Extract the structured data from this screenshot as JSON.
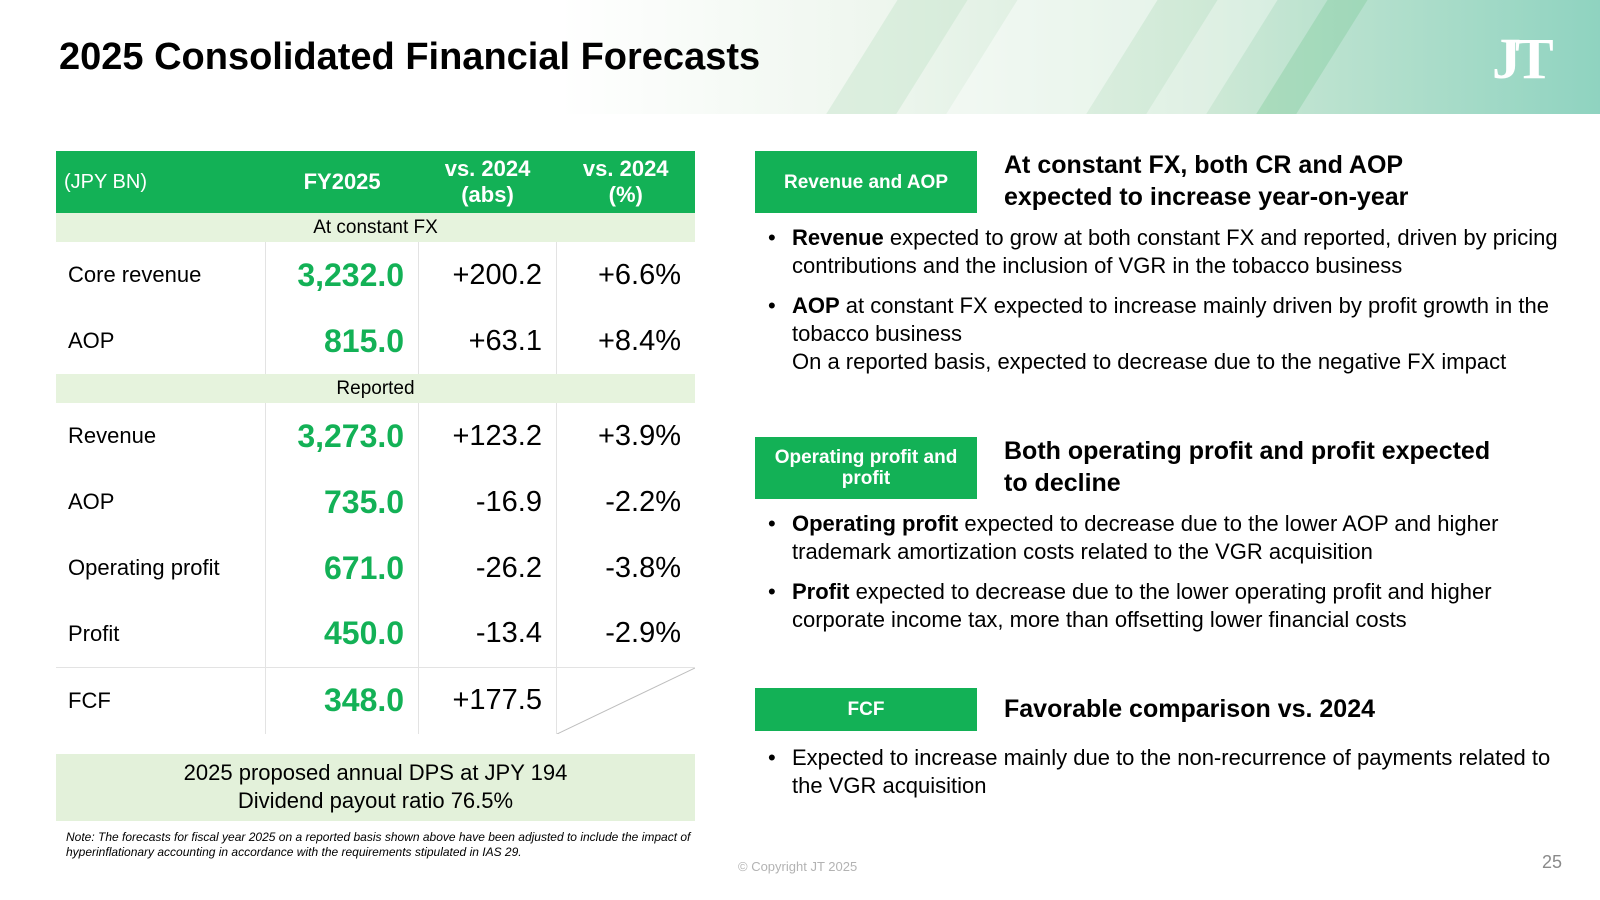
{
  "title": "2025 Consolidated Financial Forecasts",
  "logo_text": "JT",
  "table": {
    "headers": [
      "(JPY BN)",
      "FY2025",
      "vs. 2024\n(abs)",
      "vs. 2024\n(%)"
    ],
    "header_lines": {
      "unit": "(JPY BN)",
      "fy": "FY2025",
      "abs_1": "vs. 2024",
      "abs_2": "(abs)",
      "pct_1": "vs. 2024",
      "pct_2": "(%)"
    },
    "section_constant_fx": "At constant FX",
    "section_reported": "Reported",
    "rows": [
      {
        "label": "Core revenue",
        "fy2025": "3,232.0",
        "abs": "+200.2",
        "pct": "+6.6%"
      },
      {
        "label": "AOP",
        "fy2025": "815.0",
        "abs": "+63.1",
        "pct": "+8.4%"
      },
      {
        "label": "Revenue",
        "fy2025": "3,273.0",
        "abs": "+123.2",
        "pct": "+3.9%"
      },
      {
        "label": "AOP",
        "fy2025": "735.0",
        "abs": "-16.9",
        "pct": "-2.2%"
      },
      {
        "label": "Operating profit",
        "fy2025": "671.0",
        "abs": "-26.2",
        "pct": "-3.8%"
      },
      {
        "label": "Profit",
        "fy2025": "450.0",
        "abs": "-13.4",
        "pct": "-2.9%"
      },
      {
        "label": "FCF",
        "fy2025": "348.0",
        "abs": "+177.5",
        "pct": ""
      }
    ]
  },
  "dps": {
    "line1": "2025 proposed annual DPS at JPY 194",
    "line2": "Dividend payout ratio 76.5%"
  },
  "note": "Note: The forecasts for fiscal year 2025 on a reported basis shown above have been adjusted to include the impact of hyperinflationary accounting in accordance with the requirements stipulated in IAS 29.",
  "copyright": "© Copyright JT 2025",
  "page_number": "25",
  "sections": [
    {
      "tag": "Revenue and AOP",
      "headline": "At constant FX, both CR and AOP expected to increase year-on-year",
      "headline_1": "At constant FX, both CR and AOP",
      "headline_2": "expected to increase year-on-year",
      "bullets": [
        {
          "bold": "Revenue",
          "text": " expected to grow at both constant FX and reported, driven by pricing contributions and the inclusion of VGR in the tobacco business"
        },
        {
          "bold": "AOP",
          "text": " at constant FX expected to increase mainly driven by profit growth in the tobacco business",
          "extra": "On a reported basis, expected to decrease due to the negative FX impact"
        }
      ]
    },
    {
      "tag": "Operating profit and profit",
      "headline": "Both operating profit and profit expected to decline",
      "headline_1": "Both operating profit and profit expected",
      "headline_2": "to decline",
      "bullets": [
        {
          "bold": "Operating profit",
          "text": " expected to decrease due to the lower AOP and higher trademark amortization costs related to the VGR acquisition"
        },
        {
          "bold": "Profit",
          "text": " expected to decrease due to the lower operating profit and higher corporate income tax, more than offsetting lower financial costs"
        }
      ]
    },
    {
      "tag": "FCF",
      "headline": "Favorable comparison vs. 2024",
      "bullets": [
        {
          "bold": "",
          "text": "Expected to increase mainly due to the non-recurrence of payments related to the VGR acquisition"
        }
      ]
    }
  ],
  "colors": {
    "accent": "#13b156",
    "light_green": "#e6f3dd"
  }
}
